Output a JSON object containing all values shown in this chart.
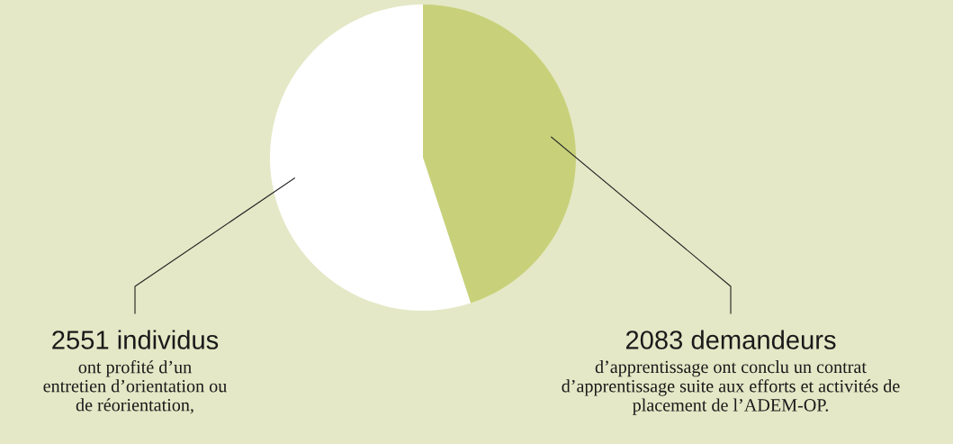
{
  "chart_data": {
    "type": "pie",
    "categories": [
      "2083 demandeurs",
      "2551 individus"
    ],
    "values": [
      2083,
      2551
    ],
    "colors": [
      "#c8d17a",
      "#ffffff"
    ],
    "annotations": [
      "d’apprentissage ont conclu un contrat\nd’apprentissage suite aux efforts et activités de\nplacement de l’ADEM-OP.",
      "ont profité d’un\nentretien d’orientation ou\nde réorientation,"
    ]
  }
}
